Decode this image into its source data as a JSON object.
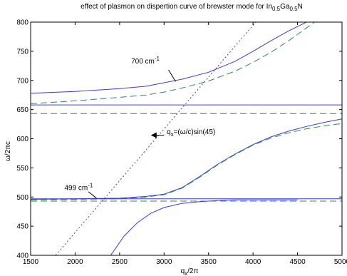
{
  "chart_data": {
    "type": "line",
    "title": "effect of plasmon on dispertion curve of brewster mode for In0.5Ga0.5N",
    "title_parts": {
      "main": "effect of plasmon on dispertion curve of brewster mode for In",
      "sub1": "0.5",
      "mid": "Ga",
      "sub2": "0.5",
      "end": "N"
    },
    "xlabel": "q",
    "xlabel_sub": "x",
    "xlabel_suffix": "/2π",
    "ylabel": "ω/2πc",
    "xlim": [
      1500,
      5000
    ],
    "ylim": [
      400,
      800
    ],
    "xticks": [
      1500,
      2000,
      2500,
      3000,
      3500,
      4000,
      4500,
      5000
    ],
    "yticks": [
      400,
      450,
      500,
      550,
      600,
      650,
      700,
      750,
      800
    ],
    "grid": false,
    "colors": {
      "with_plasmon": "#3b3bd9",
      "without_plasmon": "#2e8b57",
      "light_line": "#3b3bd9",
      "axes": "#000000"
    },
    "series": [
      {
        "style": "solid",
        "color_key": "with_plasmon",
        "x": [
          1500,
          2000,
          2500,
          2800,
          3000,
          3200,
          3500,
          3800,
          4000,
          4200,
          4400,
          4600,
          4800,
          5000
        ],
        "y": [
          678,
          681,
          686,
          690,
          696,
          702,
          714,
          733,
          750,
          768,
          785,
          800,
          815,
          830
        ]
      },
      {
        "style": "dashed",
        "color_key": "without_plasmon",
        "x": [
          1500,
          2000,
          2500,
          2800,
          3000,
          3200,
          3500,
          3800,
          4000,
          4200,
          4400,
          4600,
          4800,
          5000
        ],
        "y": [
          660,
          665,
          671,
          675,
          680,
          687,
          699,
          716,
          731,
          748,
          768,
          790,
          812,
          834
        ]
      },
      {
        "style": "solid",
        "color_key": "with_plasmon",
        "x": [
          1500,
          5000
        ],
        "y": [
          658,
          658
        ]
      },
      {
        "style": "dashed",
        "color_key": "without_plasmon",
        "x": [
          1500,
          5000
        ],
        "y": [
          643,
          643
        ]
      },
      {
        "style": "solid",
        "color_key": "with_plasmon",
        "x": [
          1500,
          2000,
          2500,
          2800,
          3000,
          3200,
          3400,
          3600,
          3800,
          4000,
          4200,
          4400,
          4600,
          4800,
          5000
        ],
        "y": [
          496,
          497,
          498,
          501,
          505,
          516,
          535,
          556,
          574,
          590,
          603,
          613,
          621,
          628,
          634
        ]
      },
      {
        "style": "dashed",
        "color_key": "without_plasmon",
        "x": [
          1500,
          2000,
          2500,
          2800,
          3000,
          3200,
          3400,
          3600,
          3800,
          4000,
          4200,
          4400,
          4600,
          4800,
          5000
        ],
        "y": [
          495,
          496,
          497,
          500,
          504,
          515,
          534,
          555,
          573,
          589,
          601,
          610,
          617,
          622,
          626
        ]
      },
      {
        "style": "solid",
        "color_key": "with_plasmon",
        "x": [
          1500,
          5000
        ],
        "y": [
          497,
          497
        ]
      },
      {
        "style": "dashed",
        "color_key": "without_plasmon",
        "x": [
          1500,
          5000
        ],
        "y": [
          493,
          493
        ]
      },
      {
        "style": "solid",
        "color_key": "with_plasmon",
        "x": [
          2400,
          2550,
          2700,
          2850,
          3000,
          3200,
          3400,
          3600,
          3800,
          4000,
          4200,
          4400,
          4500
        ],
        "y": [
          400,
          433,
          456,
          472,
          482,
          489,
          492,
          494,
          495,
          495,
          495,
          495,
          495
        ]
      },
      {
        "style": "dotted",
        "color_key": "light_line",
        "x": [
          1780,
          4030
        ],
        "y": [
          400,
          800
        ]
      }
    ],
    "annotations": [
      {
        "text": "700 cm",
        "sup": "-1",
        "text_at": [
          2630,
          729
        ],
        "arrow_from": [
          3050,
          718
        ],
        "arrow_to": [
          3130,
          698
        ],
        "arrow_head": false
      },
      {
        "text": "499 cm",
        "sup": "-1",
        "text_at": [
          1880,
          512
        ],
        "arrow_from": [
          2150,
          509
        ],
        "arrow_to": [
          2240,
          498
        ],
        "arrow_head": false
      },
      {
        "text": "q",
        "sub": "x",
        "suffix": "=(ω/c)sin(45)",
        "text_at": [
          3030,
          608
        ],
        "arrow_from": [
          3000,
          606
        ],
        "arrow_to": [
          2860,
          606
        ],
        "arrow_head": true
      }
    ]
  }
}
